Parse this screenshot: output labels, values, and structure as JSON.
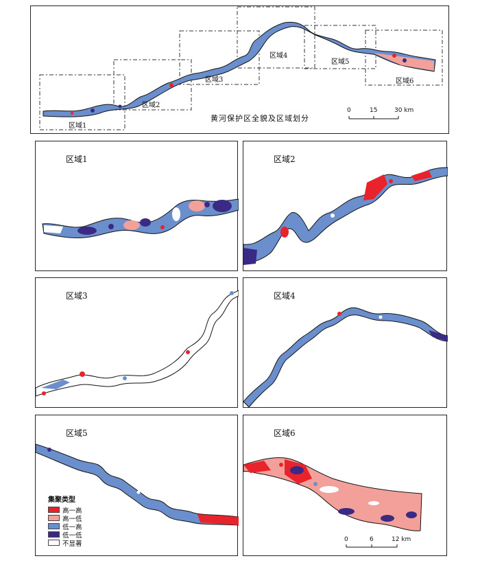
{
  "overview": {
    "title": "黄河保护区全貌及区域划分",
    "regions": [
      "区域1",
      "区域2",
      "区域3",
      "区域4",
      "区域5",
      "区域6"
    ],
    "scale": {
      "ticks": [
        "0",
        "15",
        "30 km"
      ]
    }
  },
  "panels": {
    "p1": "区域1",
    "p2": "区域2",
    "p3": "区域3",
    "p4": "区域4",
    "p5": "区域5",
    "p6": "区域6"
  },
  "legend": {
    "title": "集聚类型",
    "items": [
      {
        "label": "高一高",
        "color": "#e8232b"
      },
      {
        "label": "高一低",
        "color": "#f3a09b"
      },
      {
        "label": "低一高",
        "color": "#6b8fcc"
      },
      {
        "label": "低一低",
        "color": "#3b2a84"
      },
      {
        "label": "不显著",
        "color": "#ffffff"
      }
    ]
  },
  "detail_scale": {
    "ticks": [
      "0",
      "6",
      "12 km"
    ]
  },
  "colors": {
    "hh": "#e8232b",
    "hl": "#f3a09b",
    "lh": "#6b8fcc",
    "ll": "#3b2a84",
    "ns": "#ffffff"
  }
}
